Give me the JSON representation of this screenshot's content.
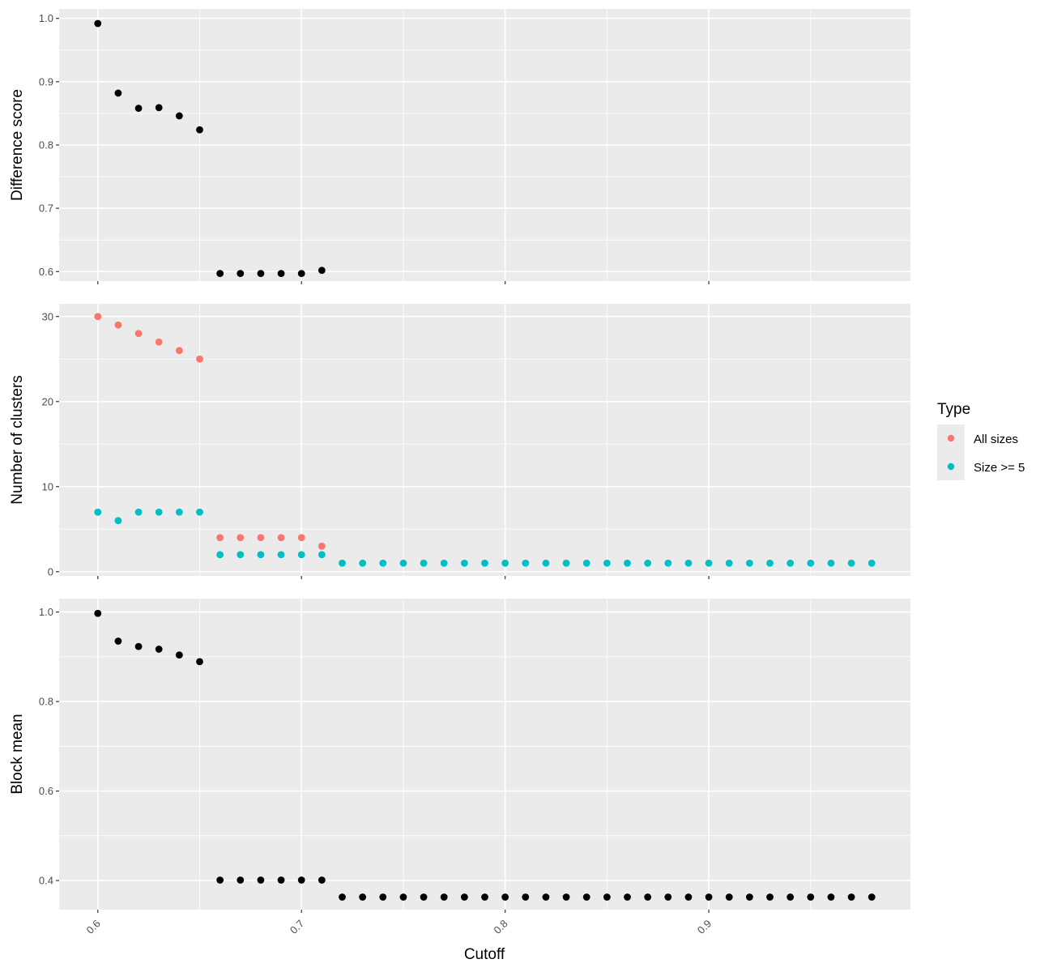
{
  "chart_data": [
    {
      "type": "scatter",
      "ylabel": "Difference score",
      "ylim": [
        0.585,
        1.015
      ],
      "yticks": [
        0.6,
        0.7,
        0.8,
        0.9,
        1.0
      ],
      "ytick_labels": [
        "0.6",
        "0.7",
        "0.8",
        "0.9",
        "1.0"
      ],
      "series": [
        {
          "color": "#000000",
          "x": [
            0.6,
            0.61,
            0.62,
            0.63,
            0.64,
            0.65,
            0.66,
            0.67,
            0.68,
            0.69,
            0.7,
            0.71
          ],
          "y": [
            0.992,
            0.882,
            0.858,
            0.859,
            0.846,
            0.824,
            0.597,
            0.597,
            0.597,
            0.597,
            0.597,
            0.602
          ]
        }
      ]
    },
    {
      "type": "scatter",
      "ylabel": "Number of clusters",
      "ylim": [
        -0.5,
        31.5
      ],
      "yticks": [
        0,
        10,
        20,
        30
      ],
      "ytick_labels": [
        "0",
        "10",
        "20",
        "30"
      ],
      "series": [
        {
          "name": "All sizes",
          "color": "#F8766D",
          "x": [
            0.6,
            0.61,
            0.62,
            0.63,
            0.64,
            0.65,
            0.66,
            0.67,
            0.68,
            0.69,
            0.7,
            0.71
          ],
          "y": [
            30,
            29,
            28,
            27,
            26,
            25,
            4,
            4,
            4,
            4,
            4,
            3
          ]
        },
        {
          "name": "Size >= 5",
          "color": "#00BFC4",
          "x": [
            0.6,
            0.61,
            0.62,
            0.63,
            0.64,
            0.65,
            0.66,
            0.67,
            0.68,
            0.69,
            0.7,
            0.71,
            0.72,
            0.73,
            0.74,
            0.75,
            0.76,
            0.77,
            0.78,
            0.79,
            0.8,
            0.81,
            0.82,
            0.83,
            0.84,
            0.85,
            0.86,
            0.87,
            0.88,
            0.89,
            0.9,
            0.91,
            0.92,
            0.93,
            0.94,
            0.95,
            0.96,
            0.97,
            0.98
          ],
          "y": [
            7,
            6,
            7,
            7,
            7,
            7,
            2,
            2,
            2,
            2,
            2,
            2,
            1,
            1,
            1,
            1,
            1,
            1,
            1,
            1,
            1,
            1,
            1,
            1,
            1,
            1,
            1,
            1,
            1,
            1,
            1,
            1,
            1,
            1,
            1,
            1,
            1,
            1,
            1
          ]
        }
      ],
      "legend": {
        "title": "Type",
        "placement": "right",
        "entries": [
          "All sizes",
          "Size >= 5"
        ]
      }
    },
    {
      "type": "scatter",
      "ylabel": "Block mean",
      "ylim": [
        0.335,
        1.03
      ],
      "yticks": [
        0.4,
        0.6,
        0.8,
        1.0
      ],
      "ytick_labels": [
        "0.4",
        "0.6",
        "0.8",
        "1.0"
      ],
      "xlabel": "Cutoff",
      "xlim": [
        0.581,
        0.999
      ],
      "xticks": [
        0.6,
        0.7,
        0.8,
        0.9
      ],
      "xtick_labels": [
        "0.6",
        "0.7",
        "0.8",
        "0.9"
      ],
      "series": [
        {
          "color": "#000000",
          "x": [
            0.6,
            0.61,
            0.62,
            0.63,
            0.64,
            0.65,
            0.66,
            0.67,
            0.68,
            0.69,
            0.7,
            0.71,
            0.72,
            0.73,
            0.74,
            0.75,
            0.76,
            0.77,
            0.78,
            0.79,
            0.8,
            0.81,
            0.82,
            0.83,
            0.84,
            0.85,
            0.86,
            0.87,
            0.88,
            0.89,
            0.9,
            0.91,
            0.92,
            0.93,
            0.94,
            0.95,
            0.96,
            0.97,
            0.98
          ],
          "y": [
            0.997,
            0.935,
            0.923,
            0.917,
            0.904,
            0.889,
            0.401,
            0.401,
            0.401,
            0.401,
            0.401,
            0.401,
            0.363,
            0.363,
            0.363,
            0.363,
            0.363,
            0.363,
            0.363,
            0.363,
            0.363,
            0.363,
            0.363,
            0.363,
            0.363,
            0.363,
            0.363,
            0.363,
            0.363,
            0.363,
            0.363,
            0.363,
            0.363,
            0.363,
            0.363,
            0.363,
            0.363,
            0.363,
            0.363
          ]
        }
      ]
    }
  ],
  "colors": {
    "panel_background": "#EBEBEB",
    "grid": "#FFFFFF",
    "all_sizes": "#F8766D",
    "size_ge_5": "#00BFC4",
    "points": "#000000"
  }
}
